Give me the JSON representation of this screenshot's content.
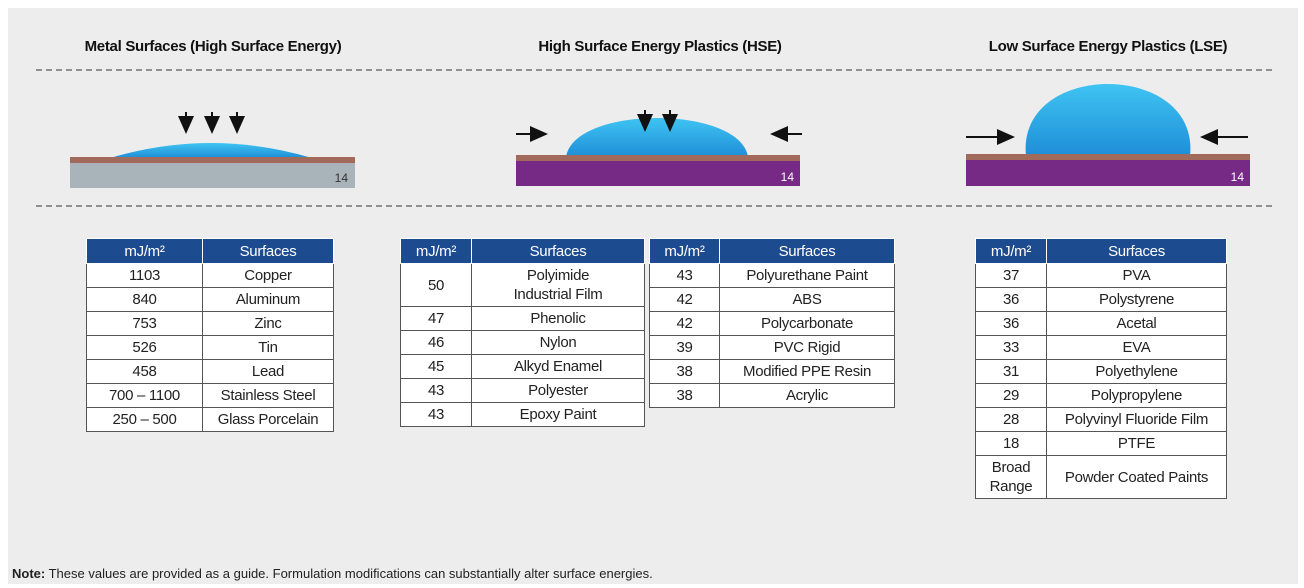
{
  "sections": [
    {
      "title": "Metal Surfaces (High Surface Energy)",
      "diagram_label": "14"
    },
    {
      "title": "High Surface Energy Plastics (HSE)",
      "diagram_label": "14"
    },
    {
      "title": "Low Surface Energy Plastics (LSE)",
      "diagram_label": "14"
    }
  ],
  "tables": [
    {
      "header": [
        "mJ/m²",
        "Surfaces"
      ],
      "rows": [
        [
          "1103",
          "Copper"
        ],
        [
          "840",
          "Aluminum"
        ],
        [
          "753",
          "Zinc"
        ],
        [
          "526",
          "Tin"
        ],
        [
          "458",
          "Lead"
        ],
        [
          "700 – 1100",
          "Stainless Steel"
        ],
        [
          "250 – 500",
          "Glass Porcelain"
        ]
      ]
    },
    {
      "header": [
        "mJ/m²",
        "Surfaces"
      ],
      "rows": [
        [
          "50",
          "Polyimide Industrial Film"
        ],
        [
          "47",
          "Phenolic"
        ],
        [
          "46",
          "Nylon"
        ],
        [
          "45",
          "Alkyd Enamel"
        ],
        [
          "43",
          "Polyester"
        ],
        [
          "43",
          "Epoxy Paint"
        ]
      ]
    },
    {
      "header": [
        "mJ/m²",
        "Surfaces"
      ],
      "rows": [
        [
          "43",
          "Polyurethane Paint"
        ],
        [
          "42",
          "ABS"
        ],
        [
          "42",
          "Polycarbonate"
        ],
        [
          "39",
          "PVC Rigid"
        ],
        [
          "38",
          "Modified PPE Resin"
        ],
        [
          "38",
          "Acrylic"
        ]
      ]
    },
    {
      "header": [
        "mJ/m²",
        "Surfaces"
      ],
      "rows": [
        [
          "37",
          "PVA"
        ],
        [
          "36",
          "Polystyrene"
        ],
        [
          "36",
          "Acetal"
        ],
        [
          "33",
          "EVA"
        ],
        [
          "31",
          "Polyethylene"
        ],
        [
          "29",
          "Polypropylene"
        ],
        [
          "28",
          "Polyvinyl Fluoride Film"
        ],
        [
          "18",
          "PTFE"
        ],
        [
          "Broad Range",
          "Powder Coated Paints"
        ]
      ]
    }
  ],
  "note": {
    "label": "Note:",
    "text": "These values are provided as a guide. Formulation modifications can substantially alter surface energies."
  }
}
